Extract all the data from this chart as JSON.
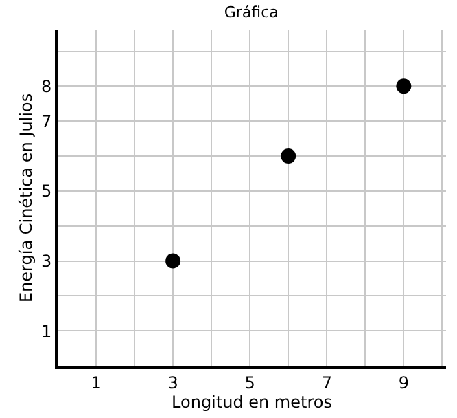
{
  "chart_data": {
    "type": "scatter",
    "title": "Gráfica",
    "xlabel": "Longitud en metros",
    "ylabel": "Energía Cinética en Julios",
    "x": [
      3,
      6,
      9
    ],
    "values": [
      3,
      6,
      8
    ],
    "color": "#000000",
    "marker": "circle",
    "xlim": [
      0,
      10.1
    ],
    "ylim": [
      0,
      9.6
    ],
    "xticks": [
      1,
      {
        "value": 2,
        "label": null
      },
      3,
      {
        "value": 4,
        "label": null
      },
      5,
      {
        "value": 6,
        "label": null
      },
      7,
      {
        "value": 8,
        "label": null
      },
      9,
      {
        "value": 10,
        "label": null
      }
    ],
    "yticks": [
      1,
      {
        "value": 2,
        "label": null
      },
      3,
      {
        "value": 4,
        "label": null
      },
      5,
      {
        "value": 6,
        "label": null
      },
      7,
      8,
      {
        "value": 9,
        "label": null
      }
    ],
    "grid": true
  }
}
